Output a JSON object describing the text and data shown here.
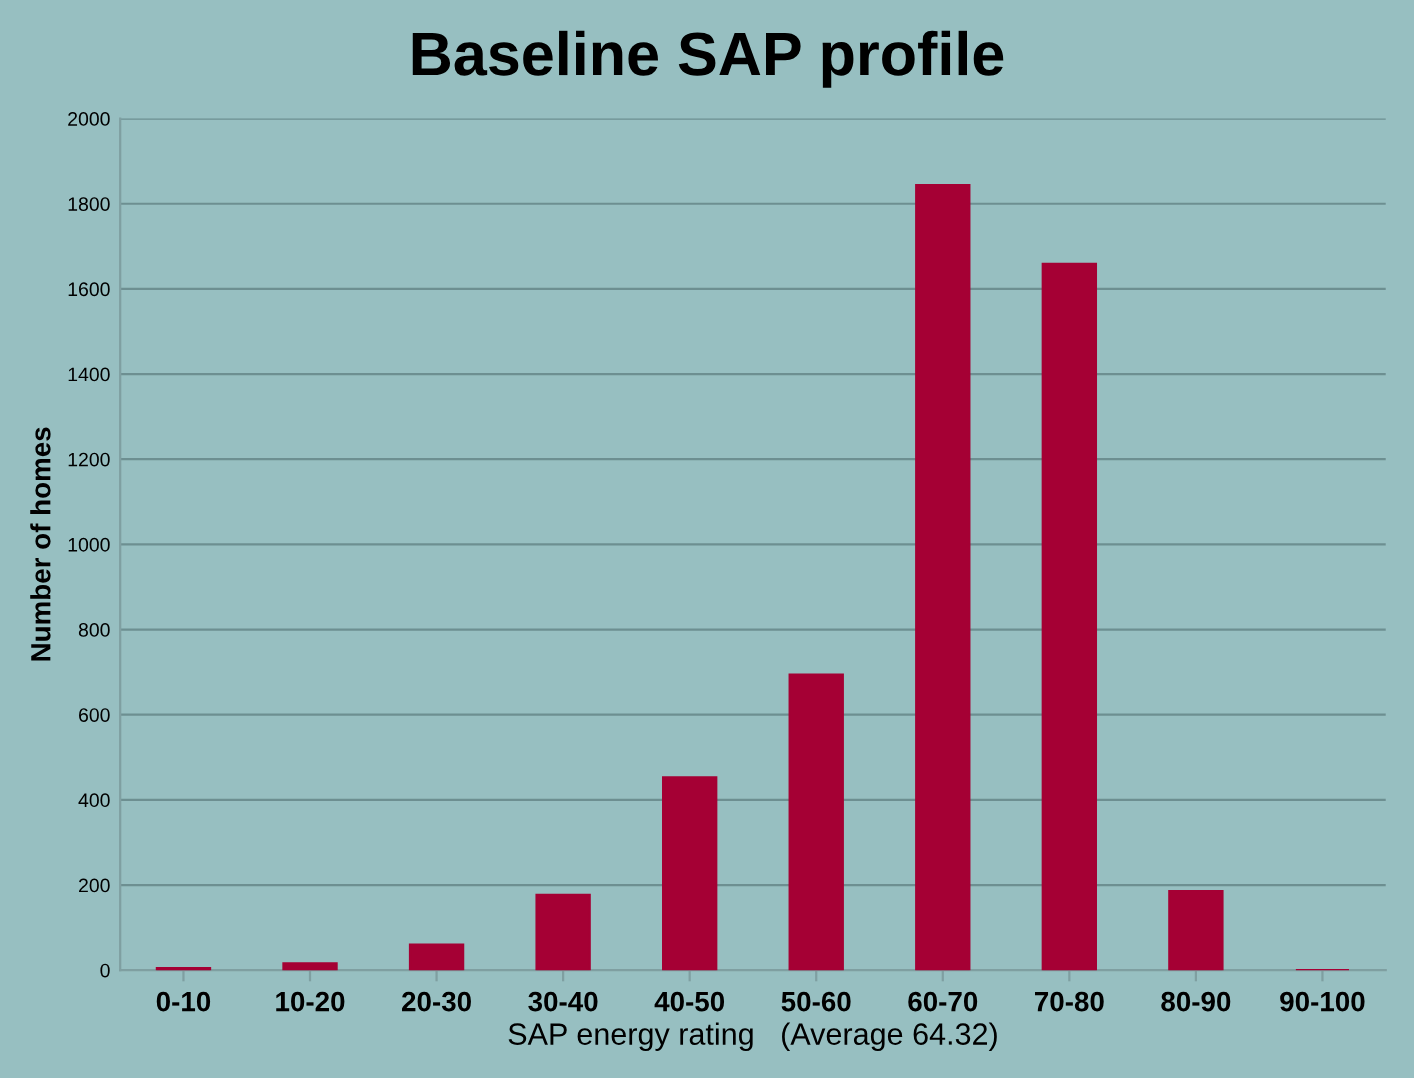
{
  "chart_data": {
    "type": "bar",
    "title": "Baseline SAP profile",
    "xlabel": "SAP energy rating   (Average 64.32)",
    "ylabel": "Number of homes",
    "categories": [
      "0-10",
      "10-20",
      "20-30",
      "30-40",
      "40-50",
      "50-60",
      "60-70",
      "70-80",
      "80-90",
      "90-100"
    ],
    "values": [
      5,
      16,
      60,
      177,
      453,
      694,
      1844,
      1659,
      186,
      0
    ],
    "color": "#a50034",
    "ylim": [
      0,
      2000
    ],
    "yticks": [
      0,
      200,
      400,
      600,
      800,
      1000,
      1200,
      1400,
      1600,
      1800,
      2000
    ],
    "grid": "y"
  }
}
